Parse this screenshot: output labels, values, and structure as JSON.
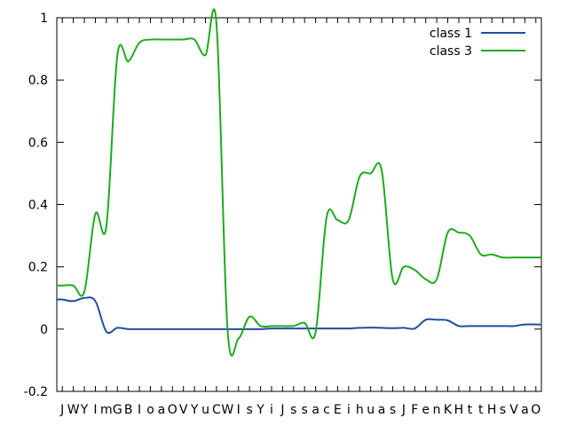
{
  "chart_data": {
    "type": "line",
    "title": "",
    "xlabel": "",
    "ylabel": "",
    "ylim": [
      -0.2,
      1.0
    ],
    "yticks": [
      -0.2,
      0,
      0.2,
      0.4,
      0.6,
      0.8,
      1
    ],
    "ytick_labels": [
      "-0.2",
      "0",
      "0.2",
      "0.4",
      "0.6",
      "0.8",
      "1"
    ],
    "grid": false,
    "legend_position": "top-right",
    "categories": [
      "J",
      "W",
      "Y",
      "I",
      "m",
      "G",
      "B",
      "I",
      "o",
      "a",
      "O",
      "V",
      "Y",
      "u",
      "C",
      "W",
      "I",
      "s",
      "Y",
      "i",
      "J",
      "s",
      "s",
      "a",
      "c",
      "E",
      "i",
      "h",
      "u",
      "a",
      "s",
      "J",
      "F",
      "e",
      "n",
      "K",
      "H",
      "t",
      "t",
      "H",
      "s",
      "V",
      "a",
      "O"
    ],
    "series": [
      {
        "name": "class 1",
        "color": "#1f4e9e",
        "values": [
          0.095,
          0.09,
          0.1,
          0.09,
          -0.008,
          0.004,
          0.0,
          0.0,
          0.0,
          0.0,
          0.0,
          0.0,
          0.0,
          0.0,
          0.0,
          0.0,
          0.0,
          0.0,
          0.0,
          0.002,
          0.002,
          0.002,
          0.002,
          0.002,
          0.002,
          0.002,
          0.002,
          0.004,
          0.005,
          0.004,
          0.003,
          0.004,
          0.002,
          0.03,
          0.03,
          0.028,
          0.01,
          0.01,
          0.01,
          0.01,
          0.01,
          0.01,
          0.015,
          0.015
        ]
      },
      {
        "name": "class 3",
        "color": "#1faa1f",
        "values": [
          0.14,
          0.14,
          0.12,
          0.37,
          0.33,
          0.88,
          0.86,
          0.92,
          0.93,
          0.93,
          0.93,
          0.93,
          0.93,
          0.88,
          0.98,
          0.0,
          -0.03,
          0.04,
          0.01,
          0.01,
          0.01,
          0.01,
          0.02,
          -0.01,
          0.36,
          0.35,
          0.35,
          0.49,
          0.5,
          0.51,
          0.16,
          0.2,
          0.19,
          0.16,
          0.16,
          0.31,
          0.31,
          0.3,
          0.24,
          0.24,
          0.23,
          0.23,
          0.23,
          0.23
        ]
      }
    ]
  }
}
